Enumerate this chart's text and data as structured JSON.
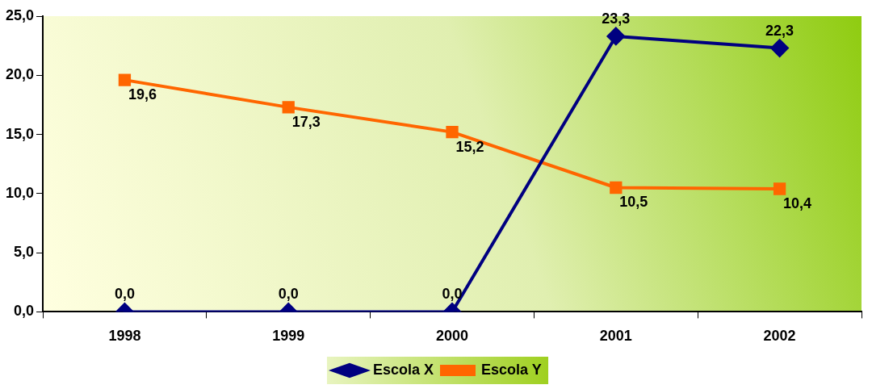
{
  "chart_data": {
    "type": "line",
    "categories": [
      "1998",
      "1999",
      "2000",
      "2001",
      "2002"
    ],
    "series": [
      {
        "name": "Escola X",
        "color": "#000080",
        "marker": "diamond",
        "values": [
          0,
          0,
          0,
          23.3,
          22.3
        ],
        "value_labels": [
          "0,0",
          "0,0",
          "0,0",
          "23,3",
          "22,3"
        ]
      },
      {
        "name": "Escola Y",
        "color": "#ff6600",
        "marker": "square",
        "values": [
          19.6,
          17.3,
          15.2,
          10.5,
          10.4
        ],
        "value_labels": [
          "19,6",
          "17,3",
          "15,2",
          "10,5",
          "10,4"
        ]
      }
    ],
    "ylim": [
      0,
      25
    ],
    "yticks": [
      {
        "value": 0,
        "label": "0,0"
      },
      {
        "value": 5,
        "label": "5,0"
      },
      {
        "value": 10,
        "label": "10,0"
      },
      {
        "value": 15,
        "label": "15,0"
      },
      {
        "value": 20,
        "label": "20,0"
      },
      {
        "value": 25,
        "label": "25,0"
      }
    ],
    "grid": false,
    "legend": "bottom",
    "line_style": "solid"
  }
}
